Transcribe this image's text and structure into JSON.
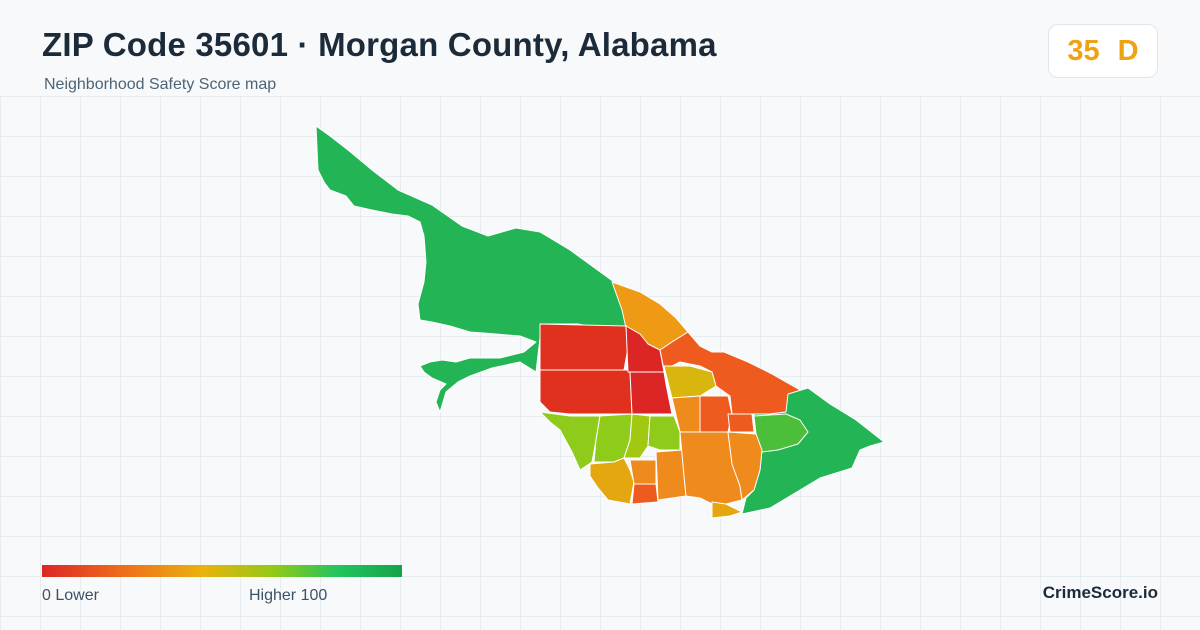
{
  "header": {
    "title": "ZIP Code 35601 · Morgan County, Alabama",
    "subtitle": "Neighborhood Safety Score map"
  },
  "score": {
    "value": "35",
    "grade": "D",
    "color": "#eea314"
  },
  "legend": {
    "low_label": "0  Lower",
    "high_label": "Higher  100",
    "colors": [
      "#dc2626",
      "#ef6c1c",
      "#e9b30d",
      "#8fc918",
      "#22c55e",
      "#16a34a"
    ]
  },
  "brand": {
    "name": "CrimeScore.io"
  },
  "map": {
    "region_colors": {
      "north_large": "#22b455",
      "east_edge": "#22b455",
      "orange_north": "#ef9a14",
      "red_west": "#e0301e",
      "red_center": "#dc2626",
      "red_east": "#ef5a1e",
      "yellow_center": "#d8b60e",
      "green_yellow": "#8ecb1a",
      "lime": "#a3c812",
      "yellow_south": "#e4a70f",
      "orange_south": "#ef8a1c",
      "green_small": "#4cbf3a"
    }
  }
}
